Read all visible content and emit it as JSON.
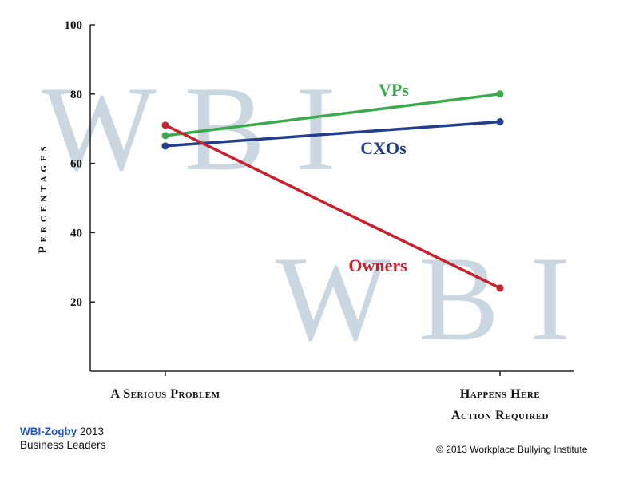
{
  "watermark": {
    "text_top": "W B I",
    "text_bottom": "W B I",
    "color": "#b9cad8"
  },
  "chart_data": {
    "type": "line",
    "categories": [
      "A Serious Problem",
      "Happens Here"
    ],
    "category_sublabels": [
      "",
      "Action Required"
    ],
    "ylabel": "Percentages",
    "ylim": [
      0,
      100
    ],
    "yticks": [
      20,
      40,
      60,
      80,
      100
    ],
    "grid": false,
    "legend": "inline",
    "series": [
      {
        "name": "VPs",
        "values": [
          68,
          80
        ],
        "color": "#3aaa4a"
      },
      {
        "name": "CXOs",
        "values": [
          65,
          72
        ],
        "color": "#223d8c"
      },
      {
        "name": "Owners",
        "values": [
          71,
          24
        ],
        "color": "#c8202e"
      }
    ]
  },
  "footer": {
    "brand": "WBI-Zogby",
    "year": "2013",
    "subtitle": "Business Leaders",
    "copyright": "© 2013 Workplace Bullying Institute"
  }
}
